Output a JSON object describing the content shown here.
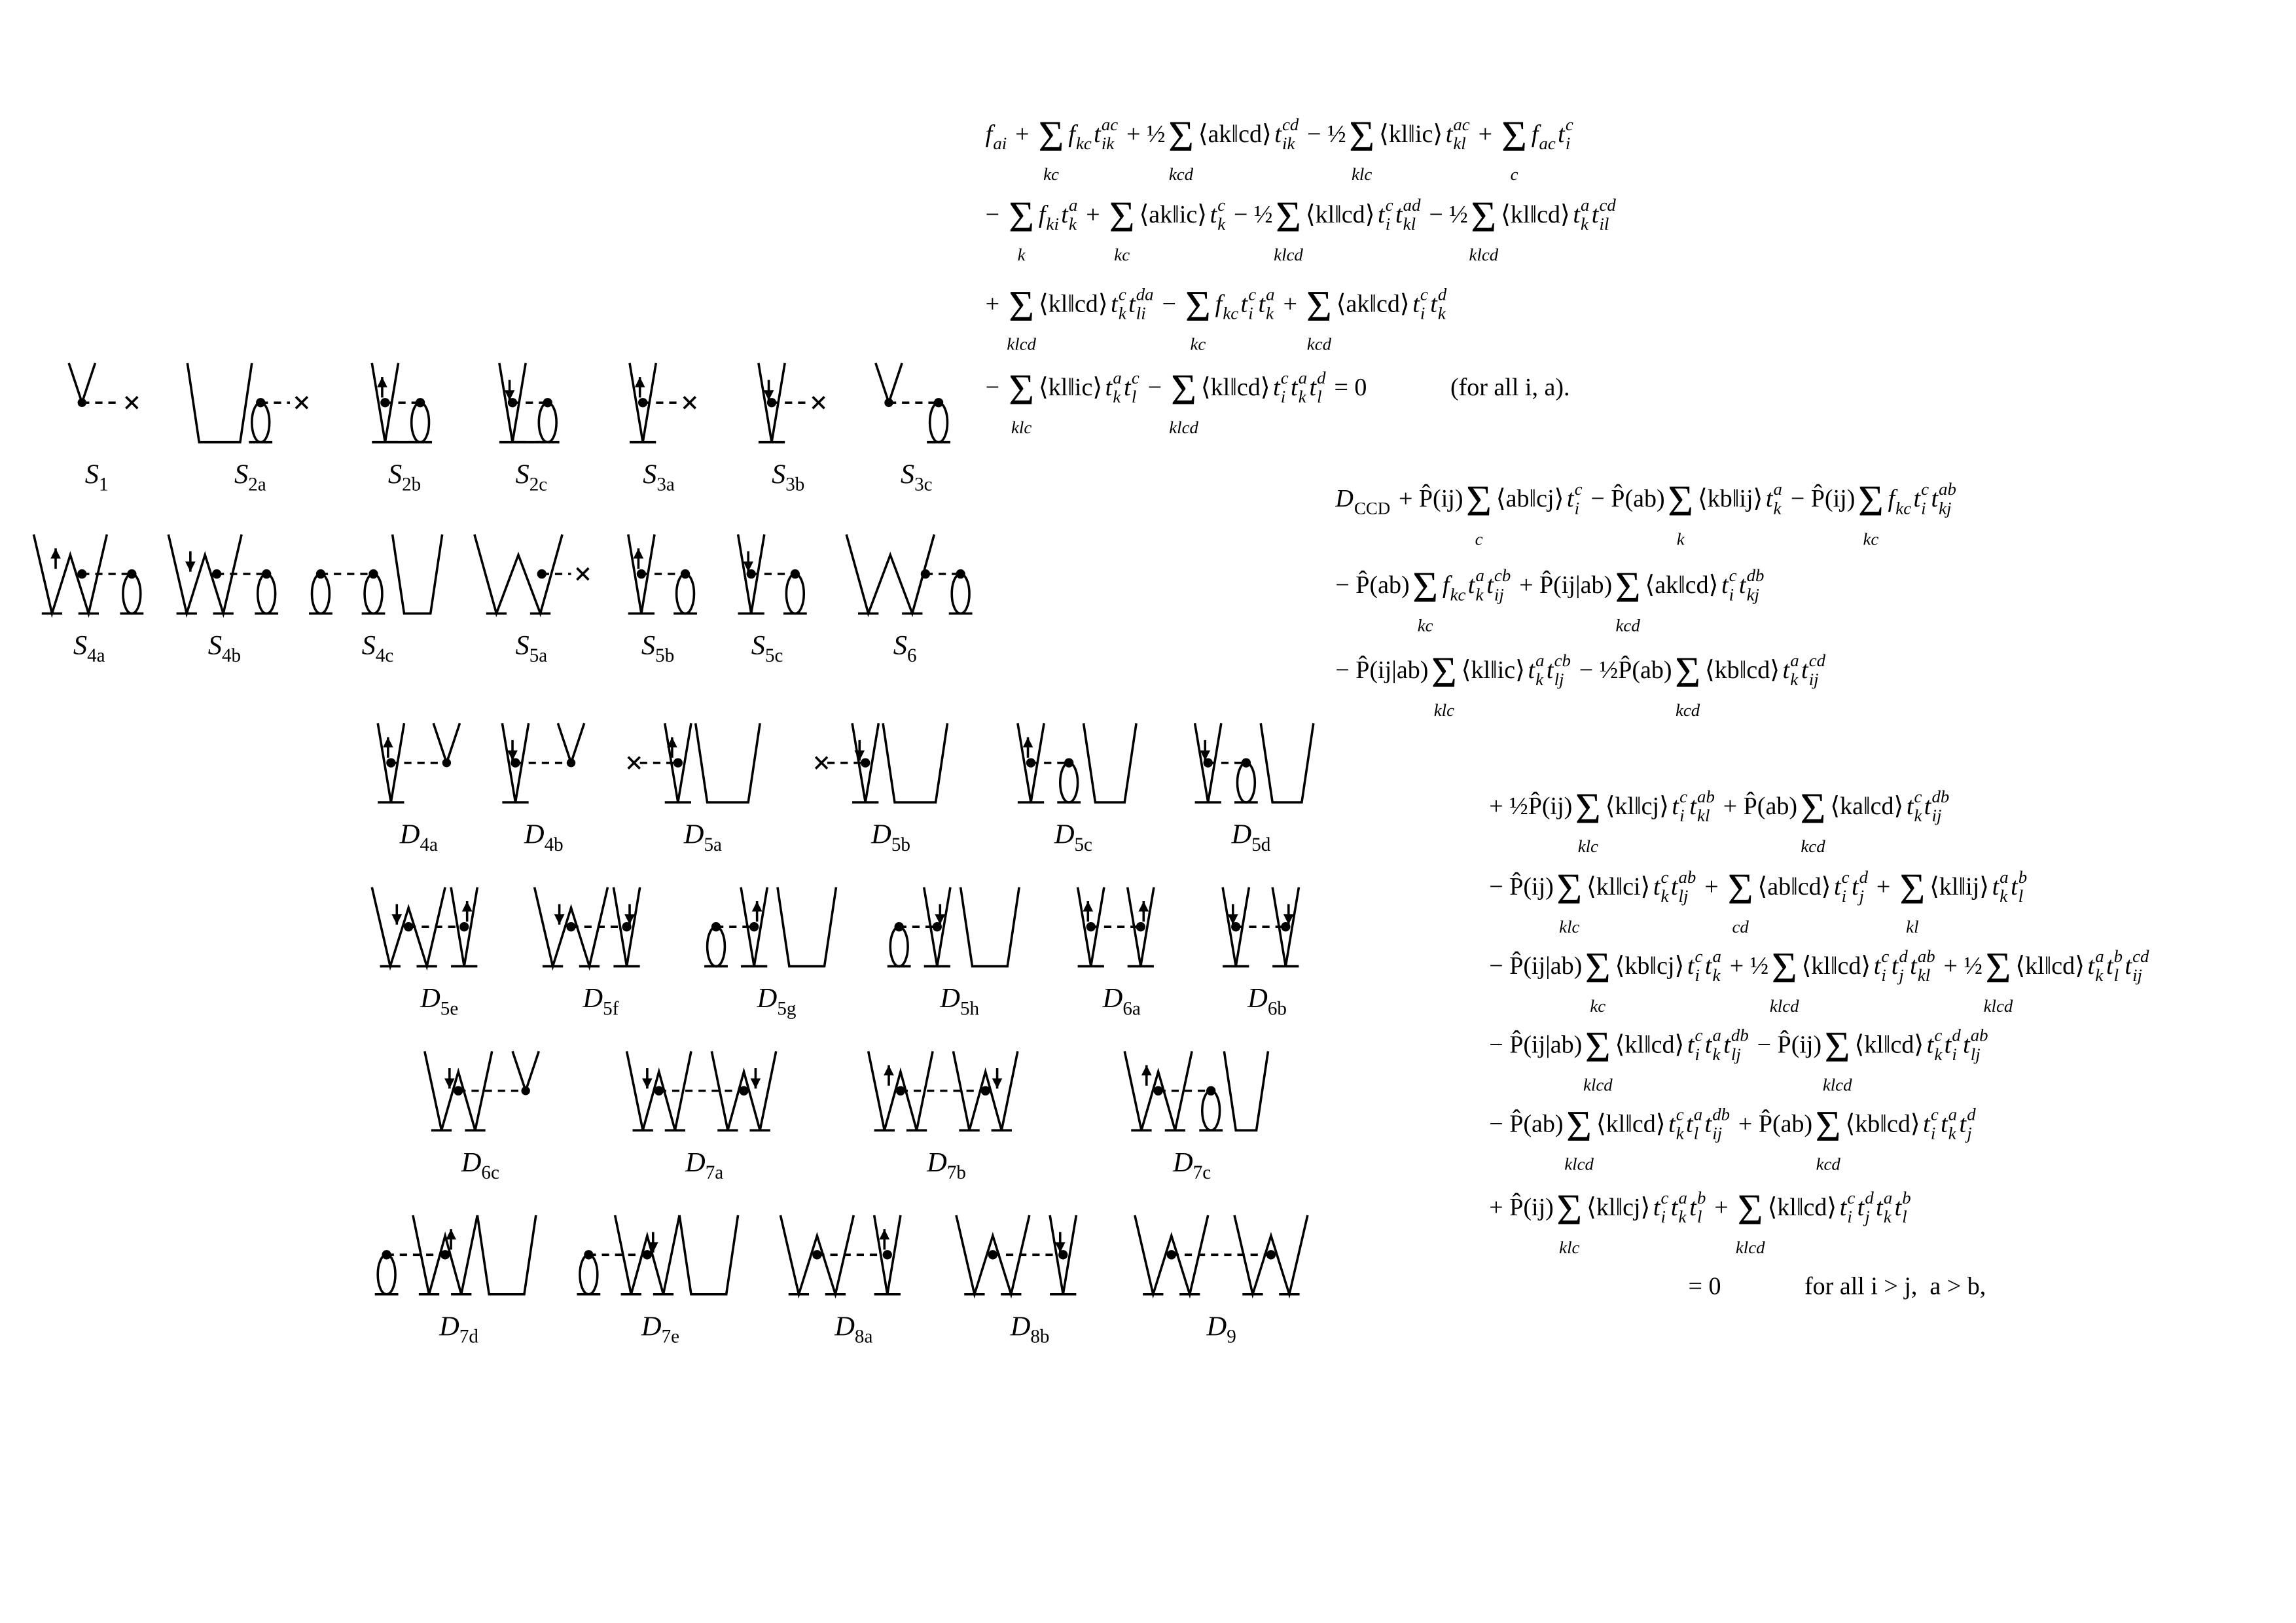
{
  "diagrams": [
    {
      "symbol": "S",
      "subscript": "1"
    },
    {
      "symbol": "S",
      "subscript": "2a"
    },
    {
      "symbol": "S",
      "subscript": "2b"
    },
    {
      "symbol": "S",
      "subscript": "2c"
    },
    {
      "symbol": "S",
      "subscript": "3a"
    },
    {
      "symbol": "S",
      "subscript": "3b"
    },
    {
      "symbol": "S",
      "subscript": "3c"
    },
    {
      "symbol": "S",
      "subscript": "4a"
    },
    {
      "symbol": "S",
      "subscript": "4b"
    },
    {
      "symbol": "S",
      "subscript": "4c"
    },
    {
      "symbol": "S",
      "subscript": "5a"
    },
    {
      "symbol": "S",
      "subscript": "5b"
    },
    {
      "symbol": "S",
      "subscript": "5c"
    },
    {
      "symbol": "S",
      "subscript": "6"
    },
    {
      "symbol": "D",
      "subscript": "4a"
    },
    {
      "symbol": "D",
      "subscript": "4b"
    },
    {
      "symbol": "D",
      "subscript": "5a"
    },
    {
      "symbol": "D",
      "subscript": "5b"
    },
    {
      "symbol": "D",
      "subscript": "5c"
    },
    {
      "symbol": "D",
      "subscript": "5d"
    },
    {
      "symbol": "D",
      "subscript": "5e"
    },
    {
      "symbol": "D",
      "subscript": "5f"
    },
    {
      "symbol": "D",
      "subscript": "5g"
    },
    {
      "symbol": "D",
      "subscript": "5h"
    },
    {
      "symbol": "D",
      "subscript": "6a"
    },
    {
      "symbol": "D",
      "subscript": "6b"
    },
    {
      "symbol": "D",
      "subscript": "6c"
    },
    {
      "symbol": "D",
      "subscript": "7a"
    },
    {
      "symbol": "D",
      "subscript": "7b"
    },
    {
      "symbol": "D",
      "subscript": "7c"
    },
    {
      "symbol": "D",
      "subscript": "7d"
    },
    {
      "symbol": "D",
      "subscript": "7e"
    },
    {
      "symbol": "D",
      "subscript": "8a"
    },
    {
      "symbol": "D",
      "subscript": "8b"
    },
    {
      "symbol": "D",
      "subscript": "9"
    }
  ],
  "equations": [
    {
      "lines": [
        [
          [
            "f",
            null,
            "ai"
          ],
          " + ",
          {
            "op": "Σ",
            "under": "kc"
          },
          [
            "f",
            null,
            "kc"
          ],
          [
            "t",
            "ac",
            "ik"
          ],
          " + ½",
          {
            "op": "Σ",
            "under": "kcd"
          },
          "⟨ak‖cd⟩",
          [
            "t",
            "cd",
            "ik"
          ],
          " − ½",
          {
            "op": "Σ",
            "under": "klc"
          },
          "⟨kl‖ic⟩",
          [
            "t",
            "ac",
            "kl"
          ],
          " + ",
          {
            "op": "Σ",
            "under": "c"
          },
          [
            "f",
            null,
            "ac"
          ],
          [
            "t",
            "c",
            "i"
          ]
        ],
        [
          "− ",
          {
            "op": "Σ",
            "under": "k"
          },
          [
            "f",
            null,
            "ki"
          ],
          [
            "t",
            "a",
            "k"
          ],
          " + ",
          {
            "op": "Σ",
            "under": "kc"
          },
          "⟨ak‖ic⟩",
          [
            "t",
            "c",
            "k"
          ],
          " − ½",
          {
            "op": "Σ",
            "under": "klcd"
          },
          "⟨kl‖cd⟩",
          [
            "t",
            "c",
            "i"
          ],
          [
            "t",
            "ad",
            "kl"
          ],
          " − ½",
          {
            "op": "Σ",
            "under": "klcd"
          },
          "⟨kl‖cd⟩",
          [
            "t",
            "a",
            "k"
          ],
          [
            "t",
            "cd",
            "il"
          ]
        ],
        [
          "+ ",
          {
            "op": "Σ",
            "under": "klcd"
          },
          "⟨kl‖cd⟩",
          [
            "t",
            "c",
            "k"
          ],
          [
            "t",
            "da",
            "li"
          ],
          " − ",
          {
            "op": "Σ",
            "under": "kc"
          },
          [
            "f",
            null,
            "kc"
          ],
          [
            "t",
            "c",
            "i"
          ],
          [
            "t",
            "a",
            "k"
          ],
          " + ",
          {
            "op": "Σ",
            "under": "kcd"
          },
          "⟨ak‖cd⟩",
          [
            "t",
            "c",
            "i"
          ],
          [
            "t",
            "d",
            "k"
          ]
        ],
        [
          "− ",
          {
            "op": "Σ",
            "under": "klc"
          },
          "⟨kl‖ic⟩",
          [
            "t",
            "a",
            "k"
          ],
          [
            "t",
            "c",
            "l"
          ],
          " − ",
          {
            "op": "Σ",
            "under": "klcd"
          },
          "⟨kl‖cd⟩",
          [
            "t",
            "c",
            "i"
          ],
          [
            "t",
            "a",
            "k"
          ],
          [
            "t",
            "d",
            "l"
          ],
          " = 0",
          "(for all i, a)."
        ]
      ]
    },
    {
      "lines": [
        [
          [
            "D",
            null,
            "CCD"
          ],
          " + P̂(ij)",
          {
            "op": "Σ",
            "under": "c"
          },
          "⟨ab‖cj⟩",
          [
            "t",
            "c",
            "i"
          ],
          " − P̂(ab)",
          {
            "op": "Σ",
            "under": "k"
          },
          "⟨kb‖ij⟩",
          [
            "t",
            "a",
            "k"
          ],
          " − P̂(ij)",
          {
            "op": "Σ",
            "under": "kc"
          },
          [
            "f",
            null,
            "kc"
          ],
          [
            "t",
            "c",
            "i"
          ],
          [
            "t",
            "ab",
            "kj"
          ]
        ],
        [
          "− P̂(ab)",
          {
            "op": "Σ",
            "under": "kc"
          },
          [
            "f",
            null,
            "kc"
          ],
          [
            "t",
            "a",
            "k"
          ],
          [
            "t",
            "cb",
            "ij"
          ],
          " + P̂(ij|ab)",
          {
            "op": "Σ",
            "under": "kcd"
          },
          "⟨ak‖cd⟩",
          [
            "t",
            "c",
            "i"
          ],
          [
            "t",
            "db",
            "kj"
          ]
        ],
        [
          "− P̂(ij|ab)",
          {
            "op": "Σ",
            "under": "klc"
          },
          "⟨kl‖ic⟩",
          [
            "t",
            "a",
            "k"
          ],
          [
            "t",
            "cb",
            "lj"
          ],
          " − ½P̂(ab)",
          {
            "op": "Σ",
            "under": "kcd"
          },
          "⟨kb‖cd⟩",
          [
            "t",
            "a",
            "k"
          ],
          [
            "t",
            "cd",
            "ij"
          ]
        ]
      ]
    },
    {
      "lines": [
        [
          "+ ½P̂(ij)",
          {
            "op": "Σ",
            "under": "klc"
          },
          "⟨kl‖cj⟩",
          [
            "t",
            "c",
            "i"
          ],
          [
            "t",
            "ab",
            "kl"
          ],
          " + P̂(ab)",
          {
            "op": "Σ",
            "under": "kcd"
          },
          "⟨ka‖cd⟩",
          [
            "t",
            "c",
            "k"
          ],
          [
            "t",
            "db",
            "ij"
          ]
        ],
        [
          "− P̂(ij)",
          {
            "op": "Σ",
            "under": "klc"
          },
          "⟨kl‖ci⟩",
          [
            "t",
            "c",
            "k"
          ],
          [
            "t",
            "ab",
            "lj"
          ],
          " + ",
          {
            "op": "Σ",
            "under": "cd"
          },
          "⟨ab‖cd⟩",
          [
            "t",
            "c",
            "i"
          ],
          [
            "t",
            "d",
            "j"
          ],
          " + ",
          {
            "op": "Σ",
            "under": "kl"
          },
          "⟨kl‖ij⟩",
          [
            "t",
            "a",
            "k"
          ],
          [
            "t",
            "b",
            "l"
          ]
        ],
        [
          "− P̂(ij|ab)",
          {
            "op": "Σ",
            "under": "kc"
          },
          "⟨kb‖cj⟩",
          [
            "t",
            "c",
            "i"
          ],
          [
            "t",
            "a",
            "k"
          ],
          " + ½",
          {
            "op": "Σ",
            "under": "klcd"
          },
          "⟨kl‖cd⟩",
          [
            "t",
            "c",
            "i"
          ],
          [
            "t",
            "d",
            "j"
          ],
          [
            "t",
            "ab",
            "kl"
          ],
          " + ½",
          {
            "op": "Σ",
            "under": "klcd"
          },
          "⟨kl‖cd⟩",
          [
            "t",
            "a",
            "k"
          ],
          [
            "t",
            "b",
            "l"
          ],
          [
            "t",
            "cd",
            "ij"
          ]
        ],
        [
          "− P̂(ij|ab)",
          {
            "op": "Σ",
            "under": "klcd"
          },
          "⟨kl‖cd⟩",
          [
            "t",
            "c",
            "i"
          ],
          [
            "t",
            "a",
            "k"
          ],
          [
            "t",
            "db",
            "lj"
          ],
          " − P̂(ij)",
          {
            "op": "Σ",
            "under": "klcd"
          },
          "⟨kl‖cd⟩",
          [
            "t",
            "c",
            "k"
          ],
          [
            "t",
            "d",
            "i"
          ],
          [
            "t",
            "ab",
            "lj"
          ]
        ],
        [
          "− P̂(ab)",
          {
            "op": "Σ",
            "under": "klcd"
          },
          "⟨kl‖cd⟩",
          [
            "t",
            "c",
            "k"
          ],
          [
            "t",
            "a",
            "l"
          ],
          [
            "t",
            "db",
            "ij"
          ],
          " + P̂(ab)",
          {
            "op": "Σ",
            "under": "kcd"
          },
          "⟨kb‖cd⟩",
          [
            "t",
            "c",
            "i"
          ],
          [
            "t",
            "a",
            "k"
          ],
          [
            "t",
            "d",
            "j"
          ]
        ],
        [
          "+ P̂(ij)",
          {
            "op": "Σ",
            "under": "klc"
          },
          "⟨kl‖cj⟩",
          [
            "t",
            "c",
            "i"
          ],
          [
            "t",
            "a",
            "k"
          ],
          [
            "t",
            "b",
            "l"
          ],
          " + ",
          {
            "op": "Σ",
            "under": "klcd"
          },
          "⟨kl‖cd⟩",
          [
            "t",
            "c",
            "i"
          ],
          [
            "t",
            "d",
            "j"
          ],
          [
            "t",
            "a",
            "k"
          ],
          [
            "t",
            "b",
            "l"
          ]
        ],
        [
          "= 0",
          "for all i > j,  a > b,"
        ]
      ]
    }
  ]
}
